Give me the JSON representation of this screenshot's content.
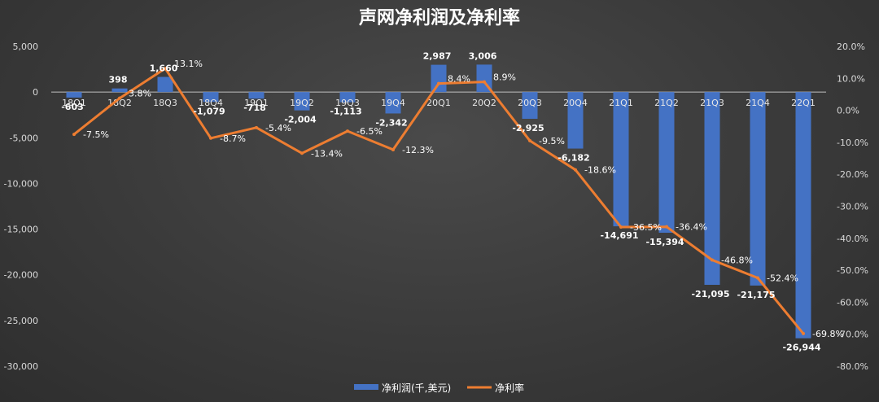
{
  "chart_data": {
    "type": "bar",
    "title": "声网净利润及净利率",
    "categories": [
      "18Q1",
      "18Q2",
      "18Q3",
      "18Q4",
      "19Q1",
      "19Q2",
      "19Q3",
      "19Q4",
      "20Q1",
      "20Q2",
      "20Q3",
      "20Q4",
      "21Q1",
      "21Q2",
      "21Q3",
      "21Q4",
      "22Q1"
    ],
    "series": [
      {
        "name": "净利润(千,美元)",
        "type": "bar",
        "axis": "left",
        "color": "#4472c4",
        "values": [
          -603,
          398,
          1660,
          -1079,
          -718,
          -2004,
          -1113,
          -2342,
          2987,
          3006,
          -2925,
          -6182,
          -14691,
          -15394,
          -21095,
          -21175,
          -26944
        ],
        "labels": [
          "-603",
          "398",
          "1,660",
          "-1,079",
          "-718",
          "-2,004",
          "-1,113",
          "-2,342",
          "2,987",
          "3,006",
          "-2,925",
          "-6,182",
          "-14,691",
          "-15,394",
          "-21,095",
          "-21,175",
          "-26,944"
        ]
      },
      {
        "name": "净利率",
        "type": "line",
        "axis": "right",
        "color": "#ed7d31",
        "values": [
          -7.5,
          3.8,
          13.1,
          -8.7,
          -5.4,
          -13.4,
          -6.5,
          -12.3,
          8.4,
          8.9,
          -9.5,
          -18.6,
          -36.5,
          -36.4,
          -46.8,
          -52.4,
          -69.8
        ],
        "labels": [
          "-7.5%",
          "3.8%",
          "13.1%",
          "-8.7%",
          "-5.4%",
          "-13.4%",
          "-6.5%",
          "-12.3%",
          "8.4%",
          "8.9%",
          "-9.5%",
          "-18.6%",
          "-36.5%",
          "-36.4%",
          "-46.8%",
          "-52.4%",
          "-69.8%"
        ]
      }
    ],
    "y_left": {
      "lim": [
        -30000,
        5000
      ],
      "ticks": [
        5000,
        0,
        -5000,
        -10000,
        -15000,
        -20000,
        -25000,
        -30000
      ],
      "tick_labels": [
        "5,000",
        "0",
        "-5,000",
        "-10,000",
        "-15,000",
        "-20,000",
        "-25,000",
        "-30,000"
      ]
    },
    "y_right": {
      "lim": [
        -80,
        20
      ],
      "ticks": [
        20,
        10,
        0,
        -10,
        -20,
        -30,
        -40,
        -50,
        -60,
        -70,
        -80
      ],
      "tick_labels": [
        "20.0%",
        "10.0%",
        "0.0%",
        "-10.0%",
        "-20.0%",
        "-30.0%",
        "-40.0%",
        "-50.0%",
        "-60.0%",
        "-70.0%",
        "-80.0%"
      ]
    },
    "legend_position": "bottom",
    "grid": false
  },
  "colors": {
    "bar": "#4472c4",
    "line": "#ed7d31",
    "zero_line": "#bfbfbf"
  }
}
